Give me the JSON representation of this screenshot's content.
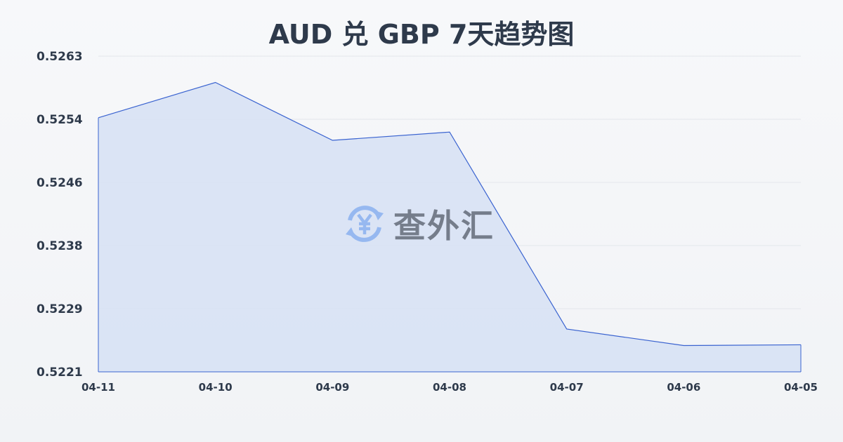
{
  "chart_data": {
    "type": "area",
    "title": "AUD 兑 GBP 7天趋势图",
    "categories": [
      "04-11",
      "04-10",
      "04-09",
      "04-08",
      "04-07",
      "04-06",
      "04-05"
    ],
    "values": [
      0.52548,
      0.52595,
      0.52518,
      0.52529,
      0.52267,
      0.52245,
      0.52246
    ],
    "yticks": [
      "0.5263",
      "0.5254",
      "0.5246",
      "0.5238",
      "0.5229",
      "0.5221"
    ],
    "ylim": [
      0.5221,
      0.5263
    ],
    "grid": true,
    "line_color": "#3a63d0",
    "fill_color": "#d6e0f5"
  },
  "watermark": {
    "text": "查外汇",
    "icon": "yen-exchange-icon"
  }
}
